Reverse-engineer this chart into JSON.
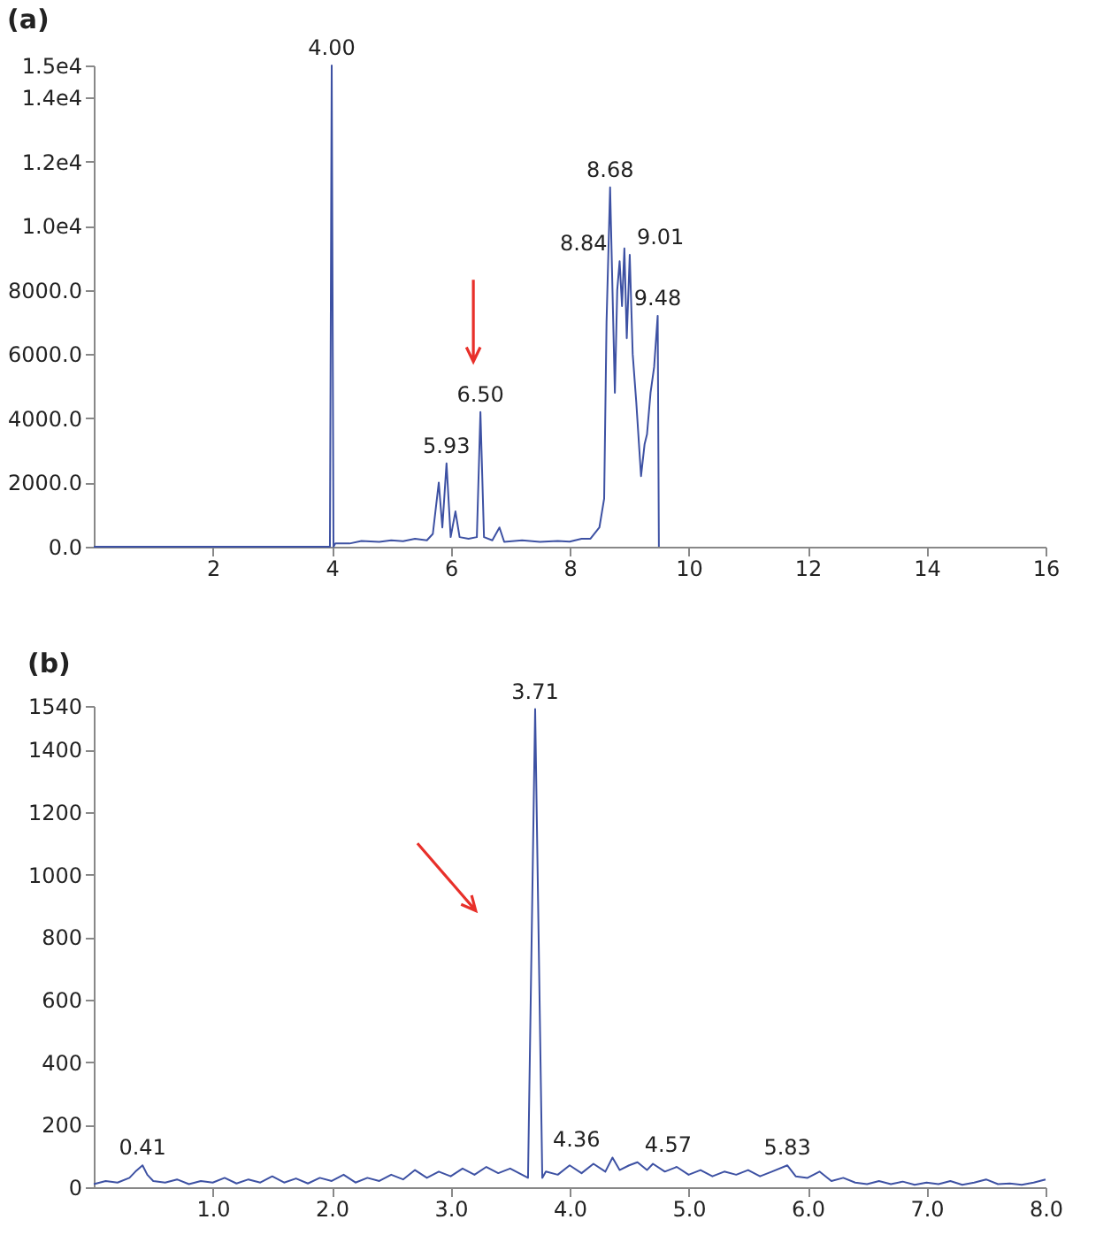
{
  "chart_data": [
    {
      "type": "line",
      "title": "(a)",
      "xlim": [
        0,
        16
      ],
      "xticks": [
        2,
        4,
        6,
        8,
        10,
        12,
        14,
        16
      ],
      "ylim": [
        0,
        15000
      ],
      "yticks": [
        {
          "value": 0,
          "label": "0.0"
        },
        {
          "value": 2000,
          "label": "2000.0"
        },
        {
          "value": 4000,
          "label": "4000.0"
        },
        {
          "value": 6000,
          "label": "6000.0"
        },
        {
          "value": 8000,
          "label": "8000.0"
        },
        {
          "value": 10000,
          "label": "1.0e4"
        },
        {
          "value": 12000,
          "label": "1.2e4"
        },
        {
          "value": 14000,
          "label": "1.4e4"
        },
        {
          "value": 15000,
          "label": "1.5e4"
        }
      ],
      "grid": false,
      "marker": "none",
      "series": [
        {
          "color": "#3d51a3",
          "x": [
            0,
            3.97,
            4.0,
            4.03,
            4.06,
            4.3,
            4.5,
            4.8,
            5.0,
            5.2,
            5.4,
            5.6,
            5.7,
            5.8,
            5.86,
            5.93,
            6.0,
            6.08,
            6.15,
            6.3,
            6.44,
            6.5,
            6.56,
            6.7,
            6.82,
            6.9,
            7.2,
            7.5,
            7.8,
            8.0,
            8.2,
            8.35,
            8.5,
            8.58,
            8.62,
            8.68,
            8.72,
            8.76,
            8.8,
            8.84,
            8.88,
            8.92,
            8.96,
            9.01,
            9.06,
            9.12,
            9.2,
            9.26,
            9.3,
            9.36,
            9.42,
            9.48,
            9.5
          ],
          "values": [
            0,
            0,
            15000,
            0,
            100,
            100,
            180,
            150,
            200,
            170,
            250,
            200,
            400,
            2000,
            600,
            2600,
            300,
            1100,
            300,
            250,
            300,
            4200,
            300,
            200,
            600,
            150,
            200,
            150,
            180,
            160,
            250,
            250,
            600,
            1500,
            7000,
            11200,
            8000,
            4800,
            8000,
            8900,
            7500,
            9300,
            6500,
            9100,
            6000,
            4500,
            2200,
            3200,
            3500,
            4800,
            5600,
            7200,
            0
          ]
        }
      ],
      "annotations": [
        {
          "text": "4.00",
          "x": 4.0,
          "y": 15000
        },
        {
          "text": "5.93",
          "x": 5.93,
          "y": 2600
        },
        {
          "text": "6.50",
          "x": 6.5,
          "y": 4200
        },
        {
          "text": "8.68",
          "x": 8.68,
          "y": 11200
        },
        {
          "text": "8.84",
          "x": 8.84,
          "y": 8900
        },
        {
          "text": "9.01",
          "x": 9.01,
          "y": 9100
        },
        {
          "text": "9.48",
          "x": 9.48,
          "y": 7200
        }
      ]
    },
    {
      "type": "line",
      "title": "(b)",
      "xlim": [
        0,
        8
      ],
      "xticks": [
        {
          "value": 1,
          "label": "1.0"
        },
        {
          "value": 2,
          "label": "2.0"
        },
        {
          "value": 3,
          "label": "3.0"
        },
        {
          "value": 4,
          "label": "4.0"
        },
        {
          "value": 5,
          "label": "5.0"
        },
        {
          "value": 6,
          "label": "6.0"
        },
        {
          "value": 7,
          "label": "7.0"
        },
        {
          "value": 8,
          "label": "8.0"
        }
      ],
      "ylim": [
        0,
        1540
      ],
      "yticks": [
        0,
        200,
        400,
        600,
        800,
        1000,
        1200,
        1400,
        1540
      ],
      "grid": false,
      "marker": "none",
      "series": [
        {
          "color": "#3d51a3",
          "x": [
            0,
            0.1,
            0.2,
            0.3,
            0.35,
            0.41,
            0.45,
            0.5,
            0.6,
            0.7,
            0.8,
            0.9,
            1.0,
            1.1,
            1.2,
            1.3,
            1.4,
            1.5,
            1.6,
            1.7,
            1.8,
            1.9,
            2.0,
            2.1,
            2.2,
            2.3,
            2.4,
            2.5,
            2.6,
            2.7,
            2.8,
            2.9,
            3.0,
            3.1,
            3.2,
            3.3,
            3.4,
            3.5,
            3.6,
            3.65,
            3.71,
            3.77,
            3.8,
            3.9,
            4.0,
            4.1,
            4.2,
            4.3,
            4.36,
            4.42,
            4.5,
            4.57,
            4.65,
            4.7,
            4.8,
            4.9,
            5.0,
            5.1,
            5.2,
            5.3,
            5.4,
            5.5,
            5.6,
            5.7,
            5.83,
            5.9,
            6.0,
            6.1,
            6.2,
            6.3,
            6.4,
            6.5,
            6.6,
            6.7,
            6.8,
            6.9,
            7.0,
            7.1,
            7.2,
            7.3,
            7.4,
            7.5,
            7.6,
            7.7,
            7.8,
            7.9,
            8.0
          ],
          "values": [
            10,
            20,
            15,
            30,
            50,
            70,
            40,
            20,
            15,
            25,
            10,
            20,
            15,
            30,
            12,
            25,
            15,
            35,
            15,
            28,
            12,
            30,
            20,
            40,
            15,
            30,
            20,
            40,
            25,
            55,
            30,
            50,
            35,
            60,
            40,
            65,
            45,
            60,
            40,
            30,
            1530,
            30,
            50,
            40,
            70,
            45,
            75,
            50,
            95,
            55,
            70,
            80,
            55,
            75,
            50,
            65,
            40,
            55,
            35,
            50,
            40,
            55,
            35,
            50,
            70,
            35,
            30,
            50,
            20,
            30,
            15,
            10,
            20,
            10,
            18,
            8,
            15,
            10,
            20,
            8,
            15,
            25,
            10,
            12,
            8,
            15,
            25
          ]
        }
      ],
      "annotations": [
        {
          "text": "0.41",
          "x": 0.41,
          "y": 70
        },
        {
          "text": "3.71",
          "x": 3.71,
          "y": 1530
        },
        {
          "text": "4.36",
          "x": 4.36,
          "y": 95
        },
        {
          "text": "4.57",
          "x": 4.57,
          "y": 80
        },
        {
          "text": "5.83",
          "x": 5.83,
          "y": 70
        }
      ]
    }
  ]
}
